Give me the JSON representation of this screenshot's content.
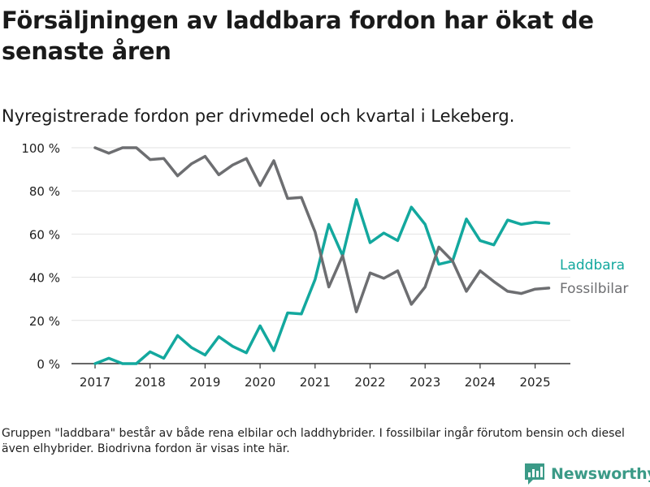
{
  "title": "Försäljningen av laddbara fordon har ökat de senaste åren",
  "subtitle": "Nyregistrerade fordon per drivmedel och kvartal i Lekeberg.",
  "footnote": "Gruppen \"laddbara\" består av både rena elbilar och laddhybrider. I fossilbilar ingår förutom bensin och diesel även elhybrider. Biodrivna fordon är visas inte här.",
  "brand": {
    "name": "Newsworthy",
    "icon": "bar-chart-logo-icon"
  },
  "colors": {
    "laddbara": "#13a89e",
    "fossilbilar": "#6d6e71",
    "grid": "#e2e2e2",
    "axis": "#333333",
    "brand": "#3b9a87"
  },
  "chart_data": {
    "type": "line",
    "x_start_year": 2017,
    "x_step_quarters": 1,
    "xticks": [
      "2017",
      "2018",
      "2019",
      "2020",
      "2021",
      "2022",
      "2023",
      "2024",
      "2025"
    ],
    "yticks": [
      "0 %",
      "20 %",
      "40 %",
      "60 %",
      "80 %",
      "100 %"
    ],
    "ylim": [
      0,
      100
    ],
    "grid": true,
    "series": [
      {
        "name": "Laddbara",
        "color": "#13a89e",
        "values": [
          0,
          2.5,
          0,
          0,
          5.5,
          2.5,
          13,
          7.5,
          4,
          12.5,
          8,
          5,
          17.5,
          6,
          23.5,
          23,
          39,
          64.5,
          50,
          76,
          56,
          60.5,
          57,
          72.5,
          64.5,
          46,
          47.5,
          67,
          57,
          55,
          66.5,
          64.5,
          65.5,
          65
        ]
      },
      {
        "name": "Fossilbilar",
        "color": "#6d6e71",
        "values": [
          100,
          97.5,
          100,
          100,
          94.5,
          95,
          87,
          92.5,
          96,
          87.5,
          92,
          95,
          82.5,
          94,
          76.5,
          77,
          61,
          35.5,
          50,
          24,
          42,
          39.5,
          43,
          27.5,
          35.5,
          54,
          47.5,
          33.5,
          43,
          38,
          33.5,
          32.5,
          34.5,
          35
        ]
      }
    ]
  }
}
